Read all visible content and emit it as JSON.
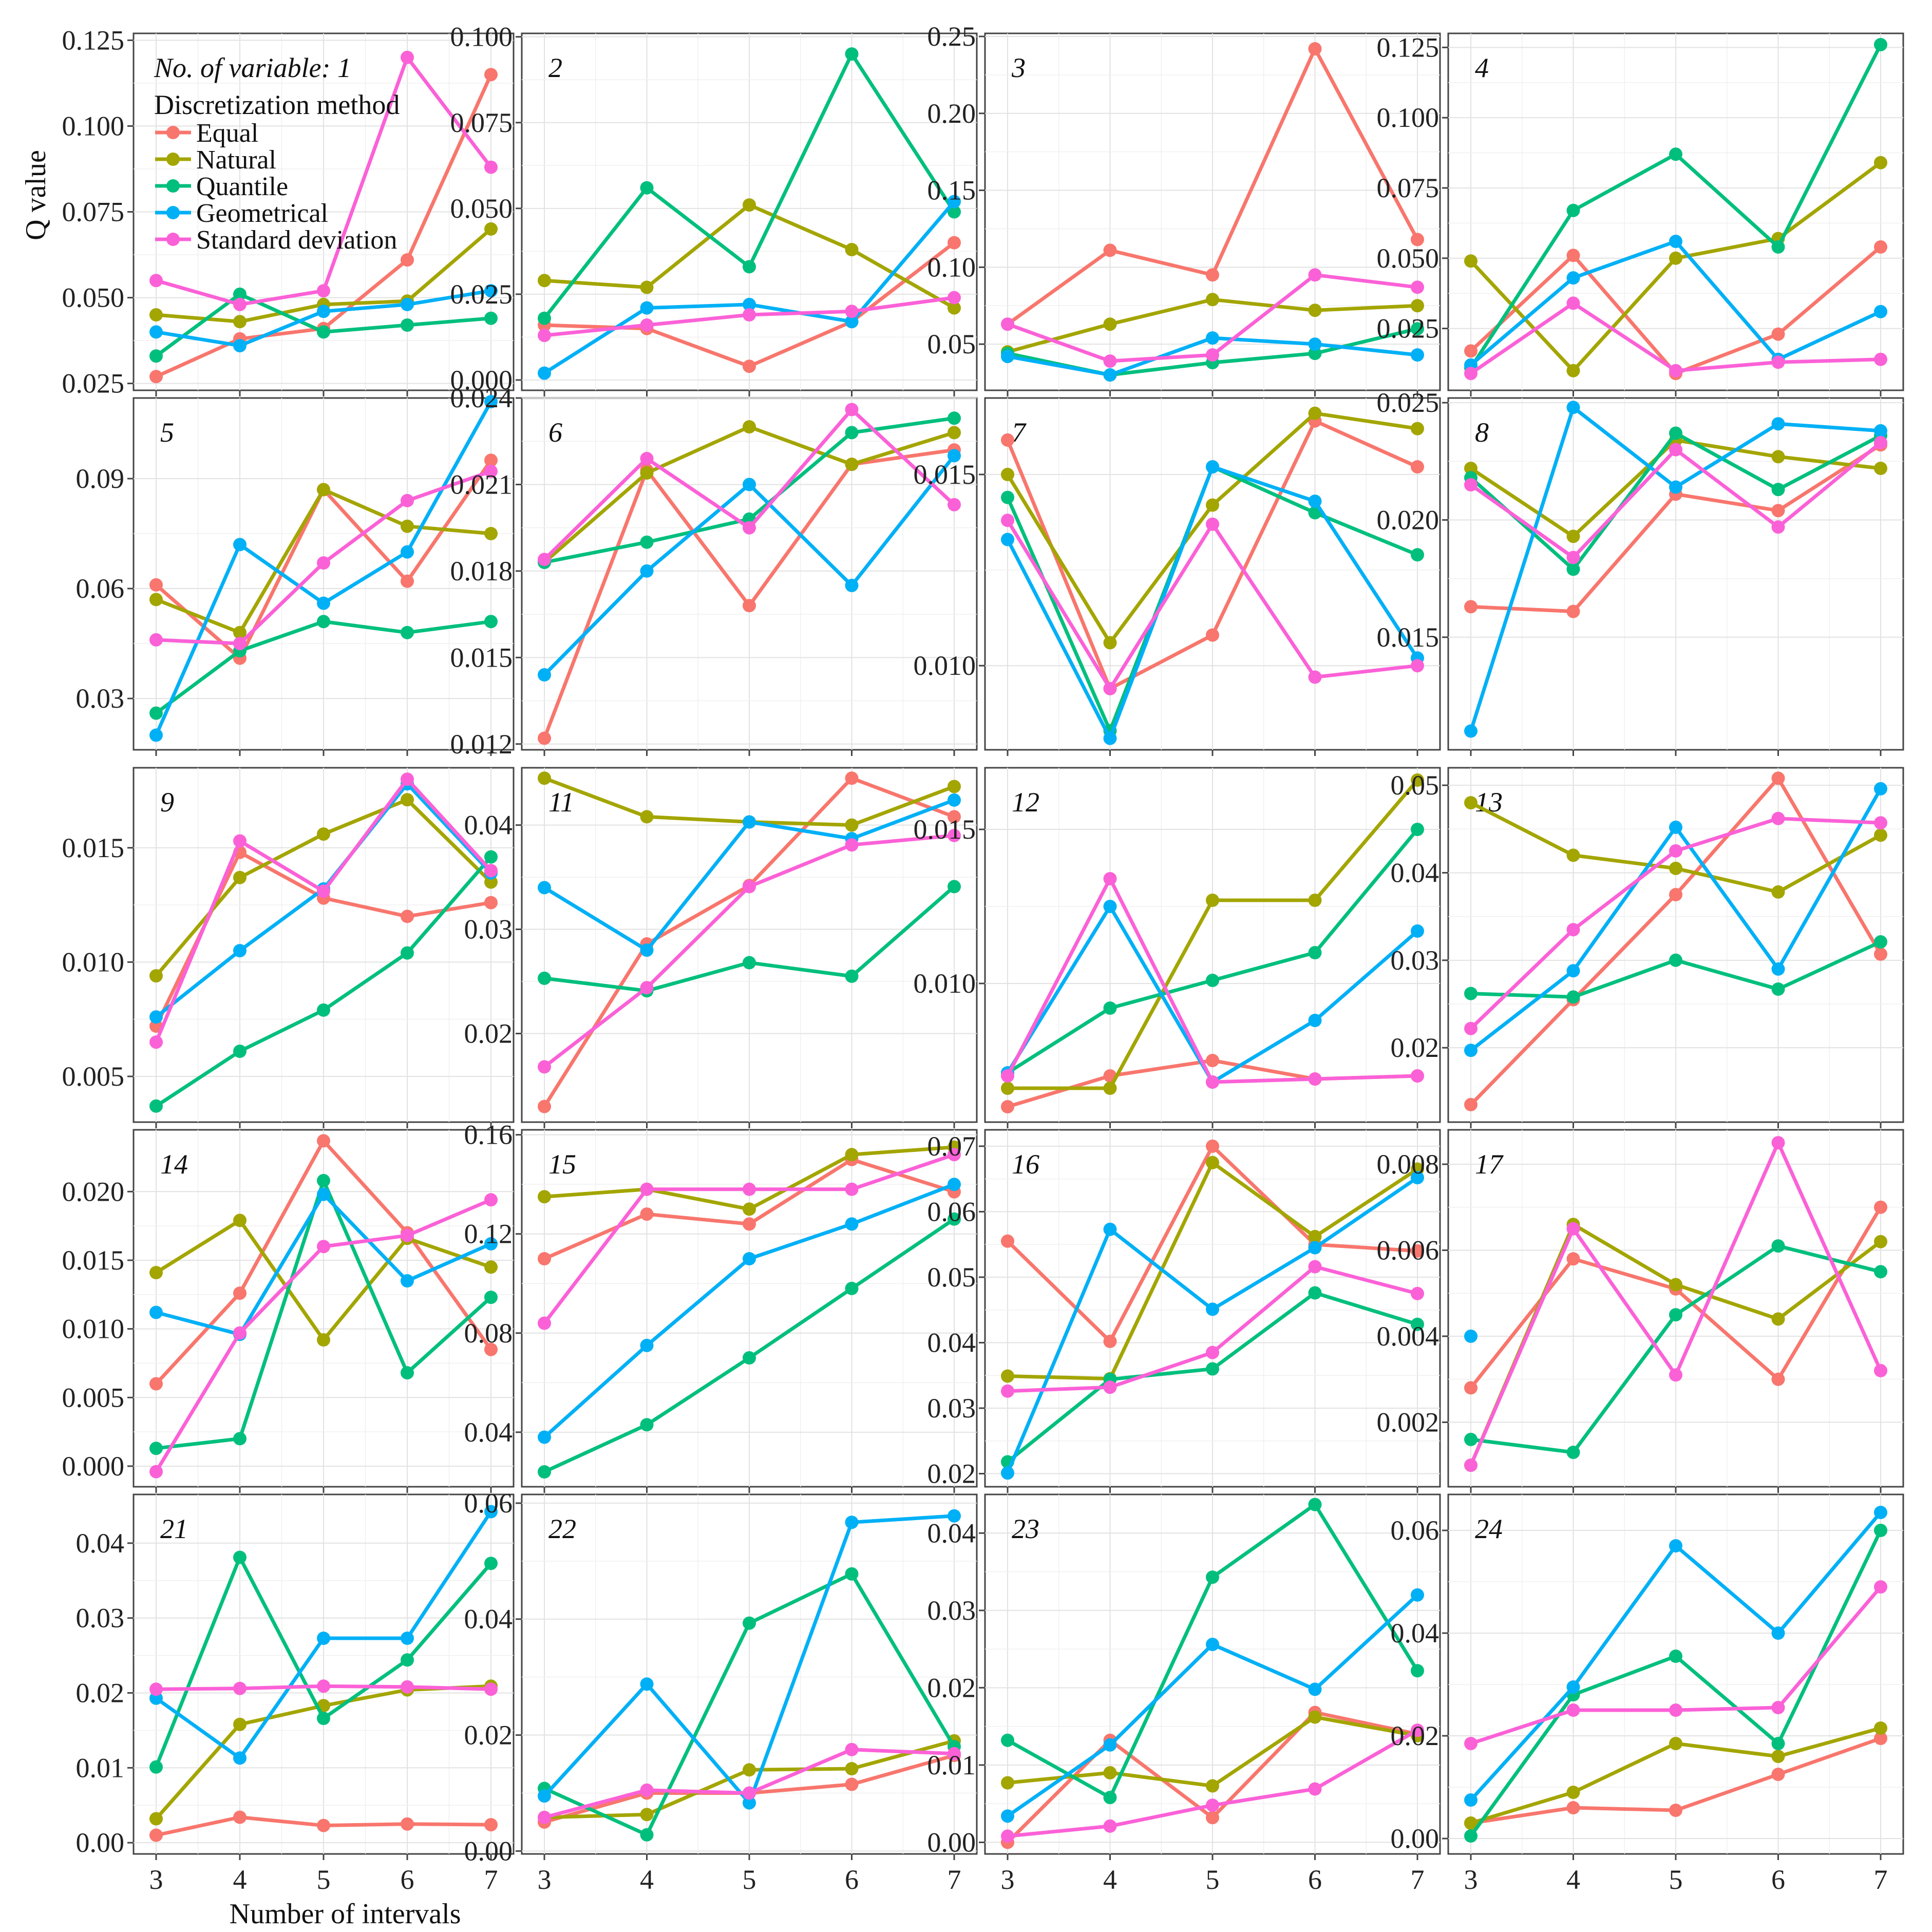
{
  "legend": {
    "header": "No. of variable: 1",
    "title": "Discretization method",
    "items": [
      "Equal",
      "Natural",
      "Quantile",
      "Geometrical",
      "Standard deviation"
    ]
  },
  "axes": {
    "ylabel": "Q value",
    "xlabel": "Number of intervals"
  },
  "colors": {
    "Equal": "#F8766D",
    "Natural": "#A3A500",
    "Quantile": "#00BF7D",
    "Geometrical": "#00B0F6",
    "Standard deviation": "#FB61D7"
  },
  "chart_data": {
    "type": "line",
    "x": [
      3,
      4,
      5,
      6,
      7
    ],
    "series_names": [
      "Equal",
      "Natural",
      "Quantile",
      "Geometrical",
      "Standard deviation"
    ],
    "panels": [
      {
        "label": "",
        "ylim": [
          0.023,
          0.127
        ],
        "yticks": [
          "0.025",
          "0.050",
          "0.075",
          "0.100",
          "0.125"
        ],
        "series": {
          "Equal": [
            0.027,
            0.038,
            0.041,
            0.061,
            0.115
          ],
          "Natural": [
            0.045,
            0.043,
            0.048,
            0.049,
            0.07
          ],
          "Quantile": [
            0.033,
            0.051,
            0.04,
            0.042,
            0.044
          ],
          "Geometrical": [
            0.04,
            0.036,
            0.046,
            0.048,
            0.052
          ],
          "Standard deviation": [
            0.055,
            0.048,
            0.052,
            0.12,
            0.088
          ]
        }
      },
      {
        "label": "2",
        "ylim": [
          -0.003,
          0.101
        ],
        "yticks": [
          "0.000",
          "0.025",
          "0.050",
          "0.075",
          "0.100"
        ],
        "series": {
          "Equal": [
            0.016,
            0.015,
            0.004,
            0.017,
            0.04
          ],
          "Natural": [
            0.029,
            0.027,
            0.051,
            0.038,
            0.021
          ],
          "Quantile": [
            0.018,
            0.056,
            0.033,
            0.095,
            0.049
          ],
          "Geometrical": [
            0.002,
            0.021,
            0.022,
            0.017,
            0.052
          ],
          "Standard deviation": [
            0.013,
            0.016,
            0.019,
            0.02,
            0.024
          ]
        }
      },
      {
        "label": "3",
        "ylim": [
          0.02,
          0.252
        ],
        "yticks": [
          "0.05",
          "0.10",
          "0.15",
          "0.20",
          "0.25"
        ],
        "series": {
          "Equal": [
            0.063,
            0.111,
            0.095,
            0.242,
            0.118
          ],
          "Natural": [
            0.045,
            0.063,
            0.079,
            0.072,
            0.075
          ],
          "Quantile": [
            0.044,
            0.03,
            0.038,
            0.044,
            0.06
          ],
          "Geometrical": [
            0.042,
            0.03,
            0.054,
            0.05,
            0.043
          ],
          "Standard deviation": [
            0.063,
            0.039,
            0.043,
            0.095,
            0.087
          ]
        }
      },
      {
        "label": "4",
        "ylim": [
          0.003,
          0.13
        ],
        "yticks": [
          "0.025",
          "0.050",
          "0.075",
          "0.100",
          "0.125"
        ],
        "series": {
          "Equal": [
            0.017,
            0.051,
            0.009,
            0.023,
            0.054
          ],
          "Natural": [
            0.049,
            0.01,
            0.05,
            0.057,
            0.084
          ],
          "Quantile": [
            0.011,
            0.067,
            0.087,
            0.054,
            0.126
          ],
          "Geometrical": [
            0.012,
            0.043,
            0.056,
            0.014,
            0.031
          ],
          "Standard deviation": [
            0.009,
            0.034,
            0.01,
            0.013,
            0.014
          ]
        }
      },
      {
        "label": "5",
        "ylim": [
          0.016,
          0.112
        ],
        "yticks": [
          "0.03",
          "0.06",
          "0.09"
        ],
        "series": {
          "Equal": [
            0.061,
            0.041,
            0.087,
            0.062,
            0.095
          ],
          "Natural": [
            0.057,
            0.048,
            0.087,
            0.077,
            0.075
          ],
          "Quantile": [
            0.026,
            0.043,
            0.051,
            0.048,
            0.051
          ],
          "Geometrical": [
            0.02,
            0.072,
            0.056,
            0.07,
            0.111
          ],
          "Standard deviation": [
            0.046,
            0.045,
            0.067,
            0.084,
            0.092
          ]
        }
      },
      {
        "label": "6",
        "ylim": [
          0.0118,
          0.024
        ],
        "yticks": [
          "0.012",
          "0.015",
          "0.018",
          "0.021",
          "0.024"
        ],
        "series": {
          "Equal": [
            0.0122,
            0.0215,
            0.0168,
            0.0217,
            0.0222
          ],
          "Natural": [
            0.0183,
            0.0214,
            0.023,
            0.0217,
            0.0228
          ],
          "Quantile": [
            0.0183,
            0.019,
            0.0198,
            0.0228,
            0.0233
          ],
          "Geometrical": [
            0.0144,
            0.018,
            0.021,
            0.0175,
            0.022
          ],
          "Standard deviation": [
            0.0184,
            0.0219,
            0.0195,
            0.0236,
            0.0203
          ]
        }
      },
      {
        "label": "7",
        "ylim": [
          0.0078,
          0.017
        ],
        "yticks": [
          "0.010",
          "0.015"
        ],
        "series": {
          "Equal": [
            0.0159,
            0.0094,
            0.0108,
            0.0164,
            0.0152
          ],
          "Natural": [
            0.015,
            0.0106,
            0.0142,
            0.0166,
            0.0162
          ],
          "Quantile": [
            0.0144,
            0.0083,
            0.0152,
            0.014,
            0.0129
          ],
          "Geometrical": [
            0.0133,
            0.0081,
            0.0152,
            0.0143,
            0.0102
          ],
          "Standard deviation": [
            0.0138,
            0.0094,
            0.0137,
            0.0097,
            0.01
          ]
        }
      },
      {
        "label": "8",
        "ylim": [
          0.0102,
          0.0252
        ],
        "yticks": [
          "0.015",
          "0.020",
          "0.025"
        ],
        "series": {
          "Equal": [
            0.0163,
            0.0161,
            0.0211,
            0.0204,
            0.0232
          ],
          "Natural": [
            0.0222,
            0.0193,
            0.0234,
            0.0227,
            0.0222
          ],
          "Quantile": [
            0.0218,
            0.0179,
            0.0237,
            0.0213,
            0.0236
          ],
          "Geometrical": [
            0.011,
            0.0248,
            0.0214,
            0.0241,
            0.0238
          ],
          "Standard deviation": [
            0.0215,
            0.0184,
            0.023,
            0.0197,
            0.0233
          ]
        }
      },
      {
        "label": "9",
        "ylim": [
          0.003,
          0.0185
        ],
        "yticks": [
          "0.005",
          "0.010",
          "0.015"
        ],
        "series": {
          "Equal": [
            0.0072,
            0.0148,
            0.0128,
            0.012,
            0.0126
          ],
          "Natural": [
            0.0094,
            0.0137,
            0.0156,
            0.0171,
            0.0135
          ],
          "Quantile": [
            0.0037,
            0.0061,
            0.0079,
            0.0104,
            0.0146
          ],
          "Geometrical": [
            0.0076,
            0.0105,
            0.0132,
            0.0178,
            0.0139
          ],
          "Standard deviation": [
            0.0065,
            0.0153,
            0.0131,
            0.018,
            0.014
          ]
        }
      },
      {
        "label": "11",
        "ylim": [
          0.0115,
          0.0455
        ],
        "yticks": [
          "0.02",
          "0.03",
          "0.04"
        ],
        "series": {
          "Equal": [
            0.013,
            0.0286,
            0.0342,
            0.0445,
            0.0408
          ],
          "Natural": [
            0.0445,
            0.0408,
            0.0403,
            0.04,
            0.0437
          ],
          "Quantile": [
            0.0253,
            0.0241,
            0.0268,
            0.0255,
            0.0341
          ],
          "Geometrical": [
            0.034,
            0.028,
            0.0403,
            0.0387,
            0.0424
          ],
          "Standard deviation": [
            0.0168,
            0.0244,
            0.0341,
            0.0381,
            0.039
          ]
        }
      },
      {
        "label": "12",
        "ylim": [
          0.0055,
          0.017
        ],
        "yticks": [
          "0.010",
          "0.015"
        ],
        "series": {
          "Equal": [
            0.006,
            0.007,
            0.0075,
            0.0069,
            0.007
          ],
          "Natural": [
            0.0066,
            0.0066,
            0.0127,
            0.0127,
            0.0166
          ],
          "Quantile": [
            0.0071,
            0.0092,
            0.0101,
            0.011,
            0.015
          ],
          "Geometrical": [
            0.0071,
            0.0125,
            0.0068,
            0.0088,
            0.0117
          ],
          "Standard deviation": [
            0.007,
            0.0134,
            0.0068,
            0.0069,
            0.007
          ]
        }
      },
      {
        "label": "13",
        "ylim": [
          0.0115,
          0.052
        ],
        "yticks": [
          "0.02",
          "0.03",
          "0.04",
          "0.05"
        ],
        "series": {
          "Equal": [
            0.0135,
            0.0255,
            0.0375,
            0.0508,
            0.0307
          ],
          "Natural": [
            0.048,
            0.042,
            0.0405,
            0.0378,
            0.0443
          ],
          "Quantile": [
            0.0262,
            0.0258,
            0.03,
            0.0267,
            0.0321
          ],
          "Geometrical": [
            0.0197,
            0.0288,
            0.0452,
            0.029,
            0.0496
          ],
          "Standard deviation": [
            0.0222,
            0.0335,
            0.0425,
            0.0462,
            0.0457
          ]
        }
      },
      {
        "label": "14",
        "ylim": [
          -0.0015,
          0.0245
        ],
        "yticks": [
          "0.000",
          "0.005",
          "0.010",
          "0.015",
          "0.020"
        ],
        "series": {
          "Equal": [
            0.006,
            0.0126,
            0.0237,
            0.017,
            0.0085
          ],
          "Natural": [
            0.0141,
            0.0179,
            0.0092,
            0.0166,
            0.0145
          ],
          "Quantile": [
            0.0013,
            0.002,
            0.0208,
            0.0068,
            0.0123
          ],
          "Geometrical": [
            0.0112,
            0.0096,
            0.0198,
            0.0135,
            0.0162
          ],
          "Standard deviation": [
            -0.0004,
            0.0097,
            0.016,
            0.0168,
            0.0194
          ]
        }
      },
      {
        "label": "15",
        "ylim": [
          0.018,
          0.162
        ],
        "yticks": [
          "0.04",
          "0.08",
          "0.12",
          "0.16"
        ],
        "series": {
          "Equal": [
            0.11,
            0.128,
            0.124,
            0.15,
            0.137
          ],
          "Natural": [
            0.135,
            0.138,
            0.13,
            0.152,
            0.155
          ],
          "Quantile": [
            0.024,
            0.043,
            0.07,
            0.098,
            0.126
          ],
          "Geometrical": [
            0.038,
            0.075,
            0.11,
            0.124,
            0.14
          ],
          "Standard deviation": [
            0.084,
            0.138,
            0.138,
            0.138,
            0.152
          ]
        }
      },
      {
        "label": "16",
        "ylim": [
          0.018,
          0.0725
        ],
        "yticks": [
          "0.02",
          "0.03",
          "0.04",
          "0.05",
          "0.06",
          "0.07"
        ],
        "series": {
          "Equal": [
            0.0555,
            0.0402,
            0.07,
            0.055,
            0.054
          ],
          "Natural": [
            0.0349,
            0.0345,
            0.0675,
            0.0562,
            0.0665
          ],
          "Quantile": [
            0.0218,
            0.0344,
            0.036,
            0.0476,
            0.0428
          ],
          "Geometrical": [
            0.0201,
            0.0573,
            0.0451,
            0.0545,
            0.0652
          ],
          "Standard deviation": [
            0.0326,
            0.0332,
            0.0385,
            0.0516,
            0.0475
          ]
        }
      },
      {
        "label": "17",
        "ylim": [
          0.0005,
          0.0088
        ],
        "yticks": [
          "0.002",
          "0.004",
          "0.006",
          "0.008"
        ],
        "series": {
          "Equal": [
            0.0028,
            0.0058,
            0.0051,
            0.003,
            0.007
          ],
          "Natural": [
            0.001,
            0.0066,
            0.0052,
            0.0044,
            0.0062
          ],
          "Quantile": [
            0.0016,
            0.0013,
            0.0045,
            0.0061,
            0.0055
          ],
          "Geometrical": [
            0.004,
            null,
            null,
            null,
            null
          ],
          "Standard deviation": [
            0.001,
            0.0065,
            0.0031,
            0.0085,
            0.0032
          ]
        }
      },
      {
        "label": "21",
        "ylim": [
          -0.0015,
          0.0465
        ],
        "yticks": [
          "0.00",
          "0.01",
          "0.02",
          "0.03",
          "0.04"
        ],
        "series": {
          "Equal": [
            0.001,
            0.0034,
            0.0023,
            0.0025,
            0.0024
          ],
          "Natural": [
            0.0032,
            0.0158,
            0.0183,
            0.0204,
            0.0209
          ],
          "Quantile": [
            0.0101,
            0.0381,
            0.0166,
            0.0244,
            0.0373
          ],
          "Geometrical": [
            0.0193,
            0.0113,
            0.0273,
            0.0273,
            0.0442
          ],
          "Standard deviation": [
            0.0205,
            0.0206,
            0.0209,
            0.0208,
            0.0205
          ]
        }
      },
      {
        "label": "22",
        "ylim": [
          -0.0005,
          0.0615
        ],
        "yticks": [
          "0.00",
          "0.02",
          "0.04",
          "0.06"
        ],
        "series": {
          "Equal": [
            0.005,
            0.01,
            0.01,
            0.0115,
            0.0165
          ],
          "Natural": [
            0.0058,
            0.0063,
            0.014,
            0.0142,
            0.019
          ],
          "Quantile": [
            0.0108,
            0.0028,
            0.0393,
            0.0478,
            0.018
          ],
          "Geometrical": [
            0.0095,
            0.0288,
            0.0083,
            0.0567,
            0.0578
          ],
          "Standard deviation": [
            0.0058,
            0.0105,
            0.01,
            0.0175,
            0.0168
          ]
        }
      },
      {
        "label": "23",
        "ylim": [
          -0.0015,
          0.045
        ],
        "yticks": [
          "0.00",
          "0.01",
          "0.02",
          "0.03",
          "0.04"
        ],
        "series": {
          "Equal": [
            0.0,
            0.0132,
            0.0032,
            0.0168,
            0.014
          ],
          "Natural": [
            0.0077,
            0.009,
            0.0073,
            0.0162,
            0.0138
          ],
          "Quantile": [
            0.0132,
            0.0058,
            0.0343,
            0.0437,
            0.0222
          ],
          "Geometrical": [
            0.0034,
            0.0126,
            0.0256,
            0.0198,
            0.032
          ],
          "Standard deviation": [
            0.0008,
            0.0021,
            0.0048,
            0.0069,
            0.0145
          ]
        }
      },
      {
        "label": "24",
        "ylim": [
          -0.003,
          0.067
        ],
        "yticks": [
          "0.00",
          "0.02",
          "0.04",
          "0.06"
        ],
        "series": {
          "Equal": [
            0.003,
            0.006,
            0.0055,
            0.0125,
            0.0195
          ],
          "Natural": [
            0.003,
            0.009,
            0.0185,
            0.016,
            0.0215
          ],
          "Quantile": [
            0.0005,
            0.028,
            0.0355,
            0.0185,
            0.06
          ],
          "Geometrical": [
            0.0075,
            0.0295,
            0.057,
            0.04,
            0.0635
          ],
          "Standard deviation": [
            0.0185,
            0.025,
            0.025,
            0.0255,
            0.049
          ]
        }
      }
    ]
  }
}
